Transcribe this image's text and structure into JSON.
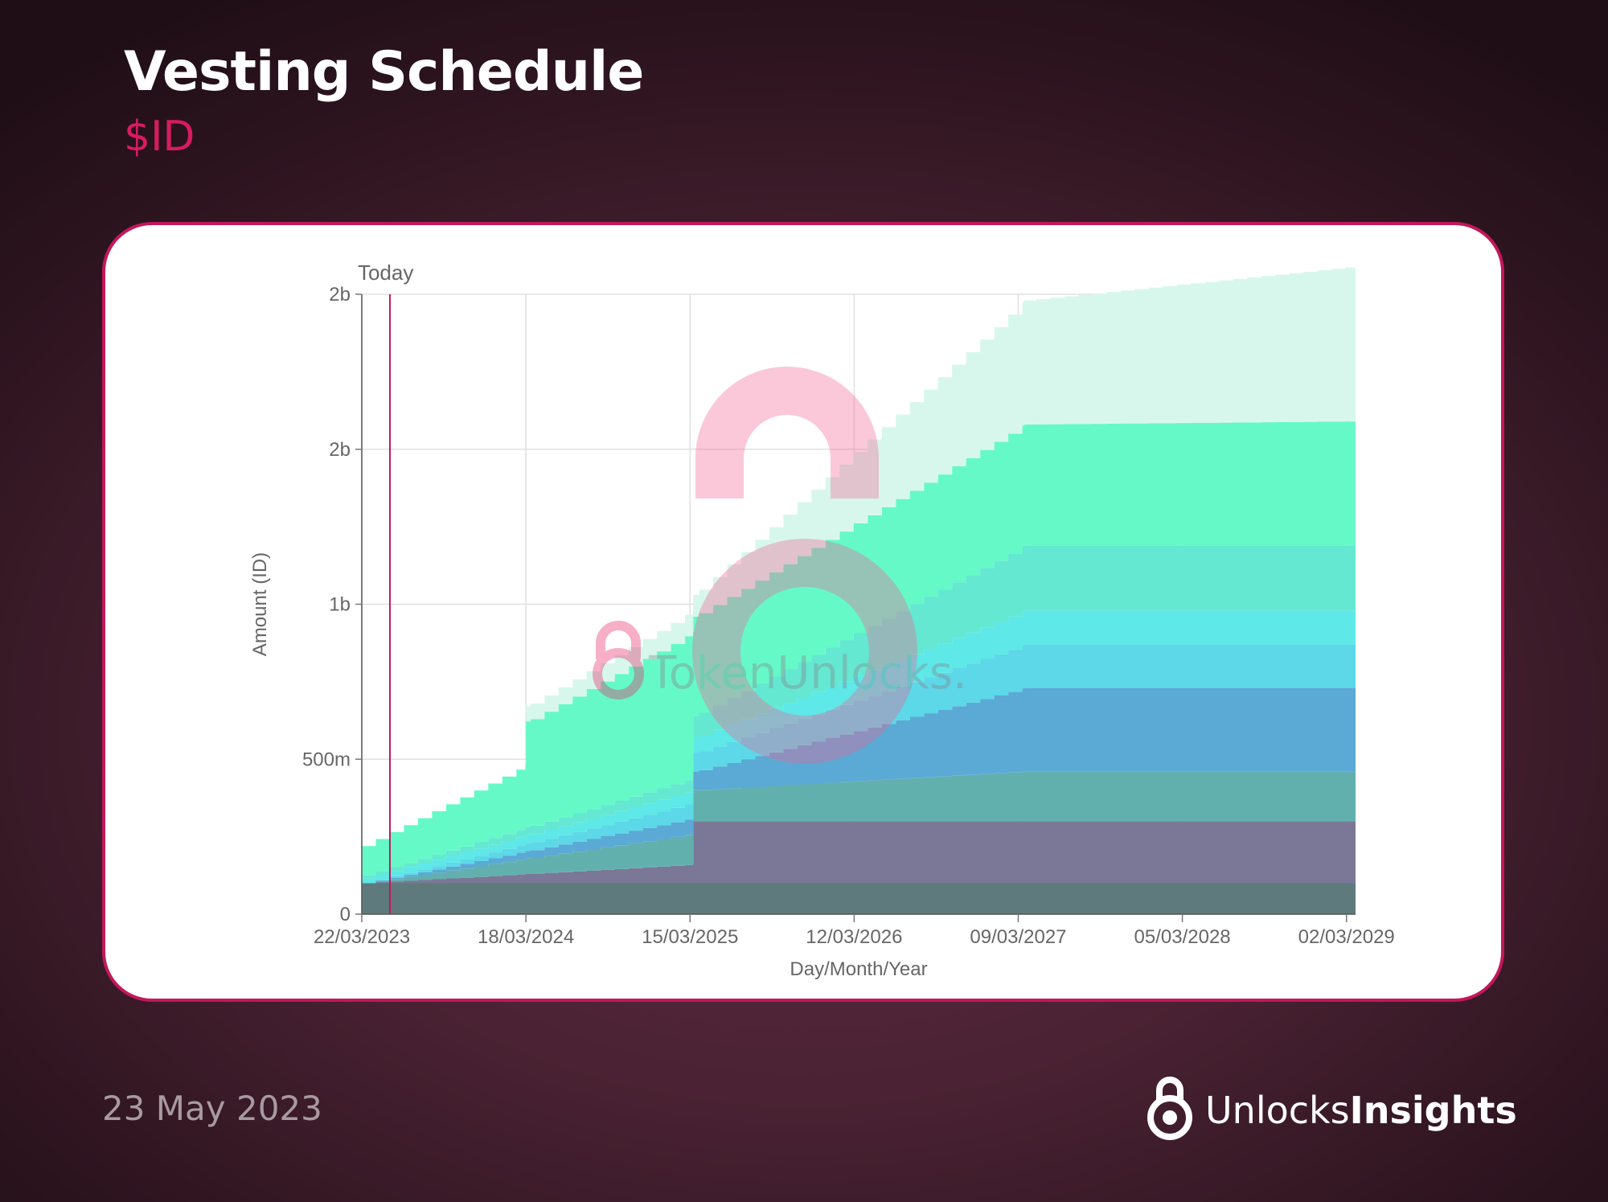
{
  "header": {
    "title": "Vesting Schedule",
    "subtitle": "$ID"
  },
  "footer": {
    "date": "23 May 2023",
    "brand_regular": "Unlocks",
    "brand_bold": "Insights"
  },
  "watermark": "TokenUnlocks.",
  "colors": {
    "title": "#ffffff",
    "subtitle": "#d81b60",
    "card_border": "#c2185b",
    "today_line": "#c2185b"
  },
  "chart_data": {
    "type": "area",
    "stacked": true,
    "stepped": true,
    "xlabel": "Day/Month/Year",
    "ylabel": "Amount (ID)",
    "today_label": "Today",
    "today_date": "2023-05-23",
    "x_start": "2023-03-22",
    "x_end": "2029-03-22",
    "ylim": [
      0,
      2000000000
    ],
    "grid": true,
    "x_ticks": [
      "22/03/2023",
      "18/03/2024",
      "15/03/2025",
      "12/03/2026",
      "09/03/2027",
      "05/03/2028",
      "02/03/2029"
    ],
    "y_ticks": [
      {
        "value": 0,
        "label": "0"
      },
      {
        "value": 500000000,
        "label": "500m"
      },
      {
        "value": 1000000000,
        "label": "1b"
      },
      {
        "value": 1500000000,
        "label": "2b"
      },
      {
        "value": 2000000000,
        "label": "2b"
      }
    ],
    "series": [
      {
        "color": "#5f7a7c",
        "points": [
          [
            "2023-03-22",
            100000000
          ],
          [
            "2029-03-22",
            100000000
          ]
        ]
      },
      {
        "color": "#7a7896",
        "points": [
          [
            "2023-03-22",
            0
          ],
          [
            "2025-03-21",
            60000000
          ],
          [
            "2025-03-22",
            200000000
          ],
          [
            "2029-03-22",
            200000000
          ]
        ]
      },
      {
        "color": "#62b0ae",
        "points": [
          [
            "2023-03-22",
            0
          ],
          [
            "2025-03-21",
            100000000
          ],
          [
            "2025-03-22",
            100000000
          ],
          [
            "2027-03-22",
            160000000
          ],
          [
            "2029-03-22",
            160000000
          ]
        ]
      },
      {
        "color": "#5ba9d5",
        "points": [
          [
            "2023-03-22",
            0
          ],
          [
            "2025-03-21",
            50000000
          ],
          [
            "2025-03-22",
            60000000
          ],
          [
            "2027-03-22",
            270000000
          ],
          [
            "2029-03-22",
            270000000
          ]
        ]
      },
      {
        "color": "#5cd8e8",
        "points": [
          [
            "2023-03-22",
            0
          ],
          [
            "2025-03-21",
            50000000
          ],
          [
            "2025-03-22",
            60000000
          ],
          [
            "2027-03-22",
            140000000
          ],
          [
            "2029-03-22",
            140000000
          ]
        ]
      },
      {
        "color": "#5ee8e8",
        "points": [
          [
            "2023-03-22",
            15000000
          ],
          [
            "2025-03-21",
            40000000
          ],
          [
            "2025-03-22",
            50000000
          ],
          [
            "2027-03-22",
            110000000
          ],
          [
            "2029-03-22",
            110000000
          ]
        ]
      },
      {
        "color": "#64e8d2",
        "points": [
          [
            "2023-03-22",
            10000000
          ],
          [
            "2025-03-21",
            40000000
          ],
          [
            "2025-03-22",
            70000000
          ],
          [
            "2027-03-22",
            210000000
          ],
          [
            "2029-03-22",
            210000000
          ]
        ]
      },
      {
        "color": "#66f9c8",
        "points": [
          [
            "2023-03-22",
            95000000
          ],
          [
            "2024-03-17",
            200000000
          ],
          [
            "2024-03-18",
            340000000
          ],
          [
            "2025-03-21",
            470000000
          ],
          [
            "2025-03-22",
            320000000
          ],
          [
            "2027-03-22",
            390000000
          ],
          [
            "2029-03-22",
            400000000
          ]
        ]
      },
      {
        "color": "#d8f7ec",
        "points": [
          [
            "2023-03-22",
            0
          ],
          [
            "2024-03-17",
            0
          ],
          [
            "2024-03-18",
            50000000
          ],
          [
            "2025-03-21",
            70000000
          ],
          [
            "2025-03-22",
            70000000
          ],
          [
            "2027-03-22",
            400000000
          ],
          [
            "2029-03-22",
            500000000
          ]
        ]
      }
    ]
  }
}
